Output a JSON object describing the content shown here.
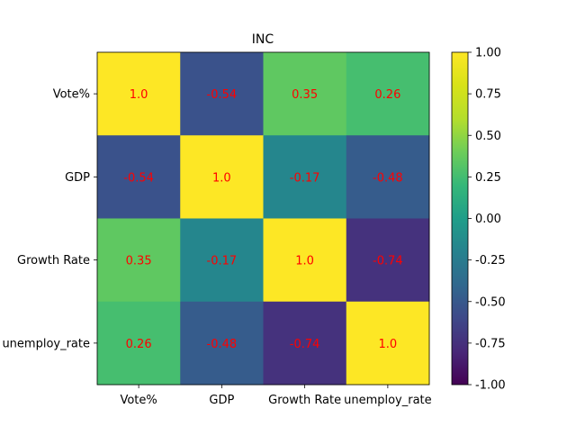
{
  "chart_data": {
    "type": "heatmap",
    "title": "INC",
    "xlabel": "",
    "ylabel": "",
    "rows": [
      "Vote%",
      "GDP",
      "Growth Rate",
      "unemploy_rate"
    ],
    "cols": [
      "Vote%",
      "GDP",
      "Growth Rate",
      "unemploy_rate"
    ],
    "values": [
      [
        1.0,
        -0.54,
        0.35,
        0.26
      ],
      [
        -0.54,
        1.0,
        -0.17,
        -0.48
      ],
      [
        0.35,
        -0.17,
        1.0,
        -0.74
      ],
      [
        0.26,
        -0.48,
        -0.74,
        1.0
      ]
    ],
    "cell_labels": [
      [
        "1.0",
        "-0.54",
        "0.35",
        "0.26"
      ],
      [
        "-0.54",
        "1.0",
        "-0.17",
        "-0.48"
      ],
      [
        "0.35",
        "-0.17",
        "1.0",
        "-0.74"
      ],
      [
        "0.26",
        "-0.48",
        "-0.74",
        "1.0"
      ]
    ],
    "annotation_color": "#ff0000",
    "colormap": "viridis",
    "vmin": -1.0,
    "vmax": 1.0,
    "colorbar": {
      "ticks": [
        1.0,
        0.75,
        0.5,
        0.25,
        0.0,
        -0.25,
        -0.5,
        -0.75,
        -1.0
      ],
      "tick_labels": [
        "1.00",
        "0.75",
        "0.50",
        "0.25",
        "0.00",
        "-0.25",
        "-0.50",
        "-0.75",
        "-1.00"
      ]
    },
    "grid": false,
    "legend": "colorbar-right"
  }
}
